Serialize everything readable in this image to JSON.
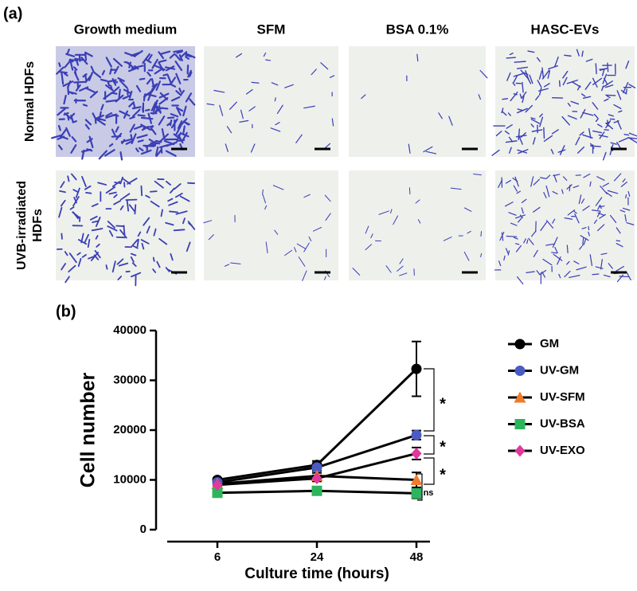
{
  "panel_a": {
    "label": "(a)",
    "columns": [
      "Growth medium",
      "SFM",
      "BSA 0.1%",
      "HASC-EVs"
    ],
    "rows": [
      [
        "Normal HDFs"
      ],
      [
        "UVB-irradiated",
        "HDFs"
      ]
    ]
  },
  "chart_data": {
    "type": "line",
    "label": "(b)",
    "xlabel": "Culture time (hours)",
    "ylabel": "Cell number",
    "categories": [
      "6",
      "24",
      "48"
    ],
    "ylim": [
      0,
      40000
    ],
    "yticks": [
      0,
      10000,
      20000,
      30000,
      40000
    ],
    "line_color": "#000000",
    "legend": "right",
    "series": [
      {
        "name": "GM",
        "color": "#000000",
        "marker": "circle",
        "values": [
          10000,
          13000,
          32300
        ],
        "errors": [
          400,
          800,
          5500
        ]
      },
      {
        "name": "UV-GM",
        "color": "#4a5bc4",
        "marker": "circle",
        "values": [
          9500,
          12500,
          19000
        ],
        "errors": [
          400,
          700,
          900
        ]
      },
      {
        "name": "UV-SFM",
        "color": "#f07b2a",
        "marker": "triangle",
        "values": [
          9200,
          10800,
          10000
        ],
        "errors": [
          400,
          600,
          1500
        ]
      },
      {
        "name": "UV-BSA",
        "color": "#2db55d",
        "marker": "square",
        "values": [
          7400,
          7800,
          7300
        ],
        "errors": [
          300,
          500,
          1000
        ]
      },
      {
        "name": "UV-EXO",
        "color": "#e0389b",
        "marker": "diamond",
        "values": [
          9000,
          10300,
          15300
        ],
        "errors": [
          400,
          600,
          1200
        ]
      }
    ],
    "annotations": [
      "*",
      "*",
      "*",
      "ns"
    ]
  }
}
